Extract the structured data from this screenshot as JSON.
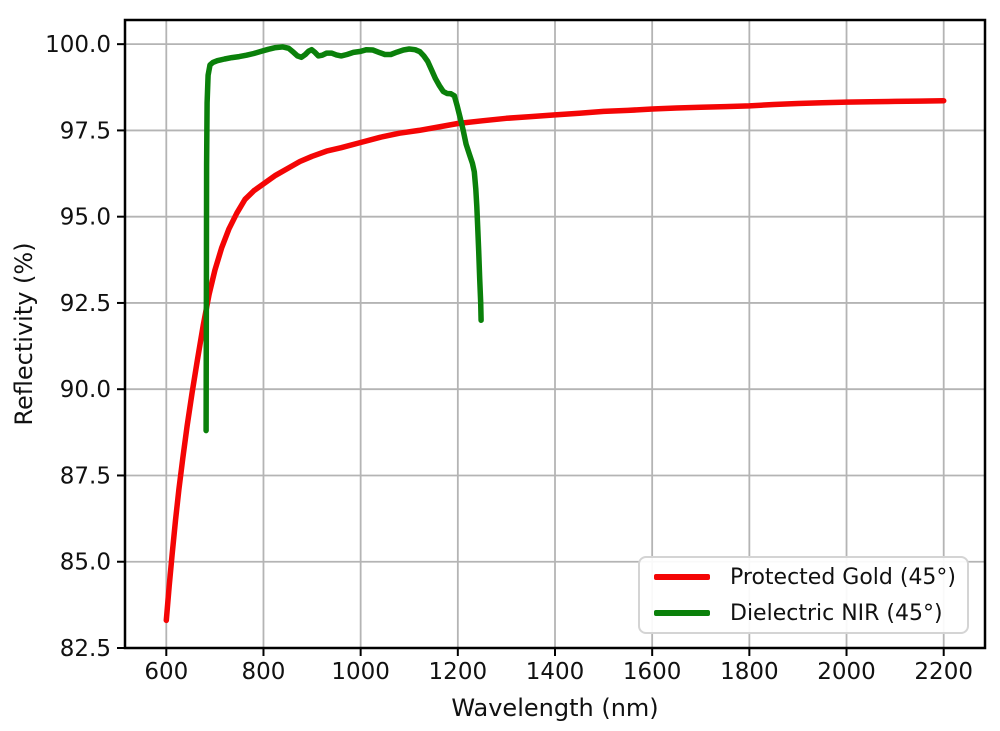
{
  "chart_data": {
    "type": "line",
    "title": "",
    "xlabel": "Wavelength (nm)",
    "ylabel": "Reflectivity (%)",
    "xlim": [
      515,
      2285
    ],
    "ylim": [
      82.5,
      100.7
    ],
    "grid": true,
    "legend_position": "lower right",
    "x_ticks": [
      600,
      800,
      1000,
      1200,
      1400,
      1600,
      1800,
      2000,
      2200
    ],
    "y_ticks": [
      82.5,
      85.0,
      87.5,
      90.0,
      92.5,
      95.0,
      97.5,
      100.0
    ],
    "colors": {
      "grid": "#b4b4b4",
      "spine": "#000000",
      "text": "#111111",
      "background": "#ffffff"
    },
    "series": [
      {
        "name": "Protected Gold (45°)",
        "color": "#f40505",
        "points": [
          [
            600,
            83.3
          ],
          [
            606,
            84.3
          ],
          [
            612,
            85.2
          ],
          [
            619,
            86.2
          ],
          [
            626,
            87.1
          ],
          [
            634,
            88.0
          ],
          [
            643,
            88.95
          ],
          [
            653,
            89.9
          ],
          [
            664,
            90.85
          ],
          [
            676,
            91.85
          ],
          [
            688,
            92.75
          ],
          [
            700,
            93.45
          ],
          [
            714,
            94.1
          ],
          [
            729,
            94.65
          ],
          [
            745,
            95.1
          ],
          [
            762,
            95.5
          ],
          [
            780,
            95.75
          ],
          [
            800,
            95.95
          ],
          [
            825,
            96.2
          ],
          [
            850,
            96.4
          ],
          [
            875,
            96.6
          ],
          [
            900,
            96.75
          ],
          [
            930,
            96.9
          ],
          [
            960,
            97.0
          ],
          [
            1000,
            97.15
          ],
          [
            1040,
            97.3
          ],
          [
            1080,
            97.42
          ],
          [
            1120,
            97.5
          ],
          [
            1160,
            97.6
          ],
          [
            1200,
            97.7
          ],
          [
            1250,
            97.78
          ],
          [
            1300,
            97.85
          ],
          [
            1350,
            97.9
          ],
          [
            1400,
            97.95
          ],
          [
            1450,
            98.0
          ],
          [
            1500,
            98.05
          ],
          [
            1550,
            98.08
          ],
          [
            1600,
            98.12
          ],
          [
            1650,
            98.15
          ],
          [
            1700,
            98.17
          ],
          [
            1750,
            98.19
          ],
          [
            1800,
            98.21
          ],
          [
            1850,
            98.25
          ],
          [
            1900,
            98.28
          ],
          [
            1950,
            98.3
          ],
          [
            2000,
            98.32
          ],
          [
            2050,
            98.33
          ],
          [
            2100,
            98.34
          ],
          [
            2150,
            98.35
          ],
          [
            2200,
            98.36
          ]
        ]
      },
      {
        "name": "Dielectric NIR (45°)",
        "color": "#0a800a",
        "points": [
          [
            682,
            88.8
          ],
          [
            682.5,
            93.0
          ],
          [
            683,
            96.5
          ],
          [
            684,
            98.3
          ],
          [
            686,
            99.1
          ],
          [
            690,
            99.4
          ],
          [
            696,
            99.47
          ],
          [
            705,
            99.52
          ],
          [
            720,
            99.57
          ],
          [
            735,
            99.61
          ],
          [
            750,
            99.64
          ],
          [
            765,
            99.68
          ],
          [
            780,
            99.73
          ],
          [
            795,
            99.79
          ],
          [
            810,
            99.85
          ],
          [
            825,
            99.9
          ],
          [
            840,
            99.92
          ],
          [
            852,
            99.88
          ],
          [
            862,
            99.76
          ],
          [
            870,
            99.66
          ],
          [
            878,
            99.62
          ],
          [
            886,
            99.7
          ],
          [
            893,
            99.8
          ],
          [
            899,
            99.84
          ],
          [
            906,
            99.76
          ],
          [
            913,
            99.66
          ],
          [
            921,
            99.68
          ],
          [
            930,
            99.74
          ],
          [
            940,
            99.74
          ],
          [
            950,
            99.69
          ],
          [
            960,
            99.66
          ],
          [
            972,
            99.7
          ],
          [
            985,
            99.76
          ],
          [
            1000,
            99.79
          ],
          [
            1012,
            99.84
          ],
          [
            1025,
            99.83
          ],
          [
            1038,
            99.76
          ],
          [
            1050,
            99.7
          ],
          [
            1062,
            99.7
          ],
          [
            1075,
            99.77
          ],
          [
            1088,
            99.83
          ],
          [
            1100,
            99.86
          ],
          [
            1112,
            99.84
          ],
          [
            1122,
            99.78
          ],
          [
            1130,
            99.66
          ],
          [
            1138,
            99.5
          ],
          [
            1146,
            99.25
          ],
          [
            1154,
            99.0
          ],
          [
            1162,
            98.8
          ],
          [
            1170,
            98.63
          ],
          [
            1178,
            98.57
          ],
          [
            1186,
            98.56
          ],
          [
            1193,
            98.5
          ],
          [
            1199,
            98.2
          ],
          [
            1205,
            97.85
          ],
          [
            1211,
            97.5
          ],
          [
            1217,
            97.1
          ],
          [
            1224,
            96.8
          ],
          [
            1230,
            96.55
          ],
          [
            1234,
            96.3
          ],
          [
            1237,
            95.8
          ],
          [
            1239,
            95.3
          ],
          [
            1241,
            94.7
          ],
          [
            1243,
            94.0
          ],
          [
            1245,
            93.2
          ],
          [
            1247,
            92.5
          ],
          [
            1248,
            92.0
          ]
        ]
      }
    ]
  }
}
